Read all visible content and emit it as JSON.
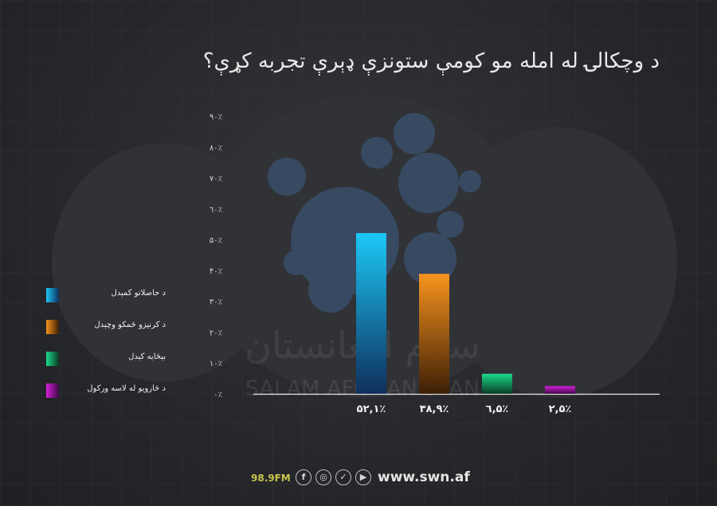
{
  "title": "د وچکالۍ له امله مو کومې ستونزې ډېرې تجربه کړې؟",
  "watermark": {
    "line1": "سلام افغانستان",
    "line2": "SALAM AFGHANISTAN"
  },
  "chart_data": {
    "type": "bar",
    "categories": [
      "د حاصلاتو کمېدل",
      "د کرنیزو ځمکو وچېدل",
      "بېځایه کېدل",
      "د څارویو له لاسه ورکول"
    ],
    "values": [
      52.1,
      38.9,
      6.5,
      2.5
    ],
    "value_labels": [
      "۵۲,۱٪",
      "۳۸,۹٪",
      "٦,۵٪",
      "۲,۵٪"
    ],
    "y_ticks": [
      {
        "value": 0,
        "label": "۰٪"
      },
      {
        "value": 10,
        "label": "۱۰٪"
      },
      {
        "value": 20,
        "label": "۲۰٪"
      },
      {
        "value": 30,
        "label": "۳۰٪"
      },
      {
        "value": 40,
        "label": "۴۰٪"
      },
      {
        "value": 50,
        "label": "۵۰٪"
      },
      {
        "value": 60,
        "label": "٦۰٪"
      },
      {
        "value": 70,
        "label": "۷۰٪"
      },
      {
        "value": 80,
        "label": "۸۰٪"
      },
      {
        "value": 90,
        "label": "۹۰٪"
      }
    ],
    "ylim": [
      0,
      90
    ],
    "colors": [
      [
        "#1cc8f7",
        "#0f2f5c"
      ],
      [
        "#f7941d",
        "#3d1f06"
      ],
      [
        "#1bdb8a",
        "#0b3a26"
      ],
      [
        "#d51edc",
        "#3d0a42"
      ]
    ],
    "legend_position": "left",
    "grid": false
  },
  "footer": {
    "frequency": "98.9FM",
    "social_icons": [
      "facebook-icon",
      "instagram-icon",
      "twitter-icon",
      "youtube-icon"
    ],
    "website": "www.swn.af"
  }
}
